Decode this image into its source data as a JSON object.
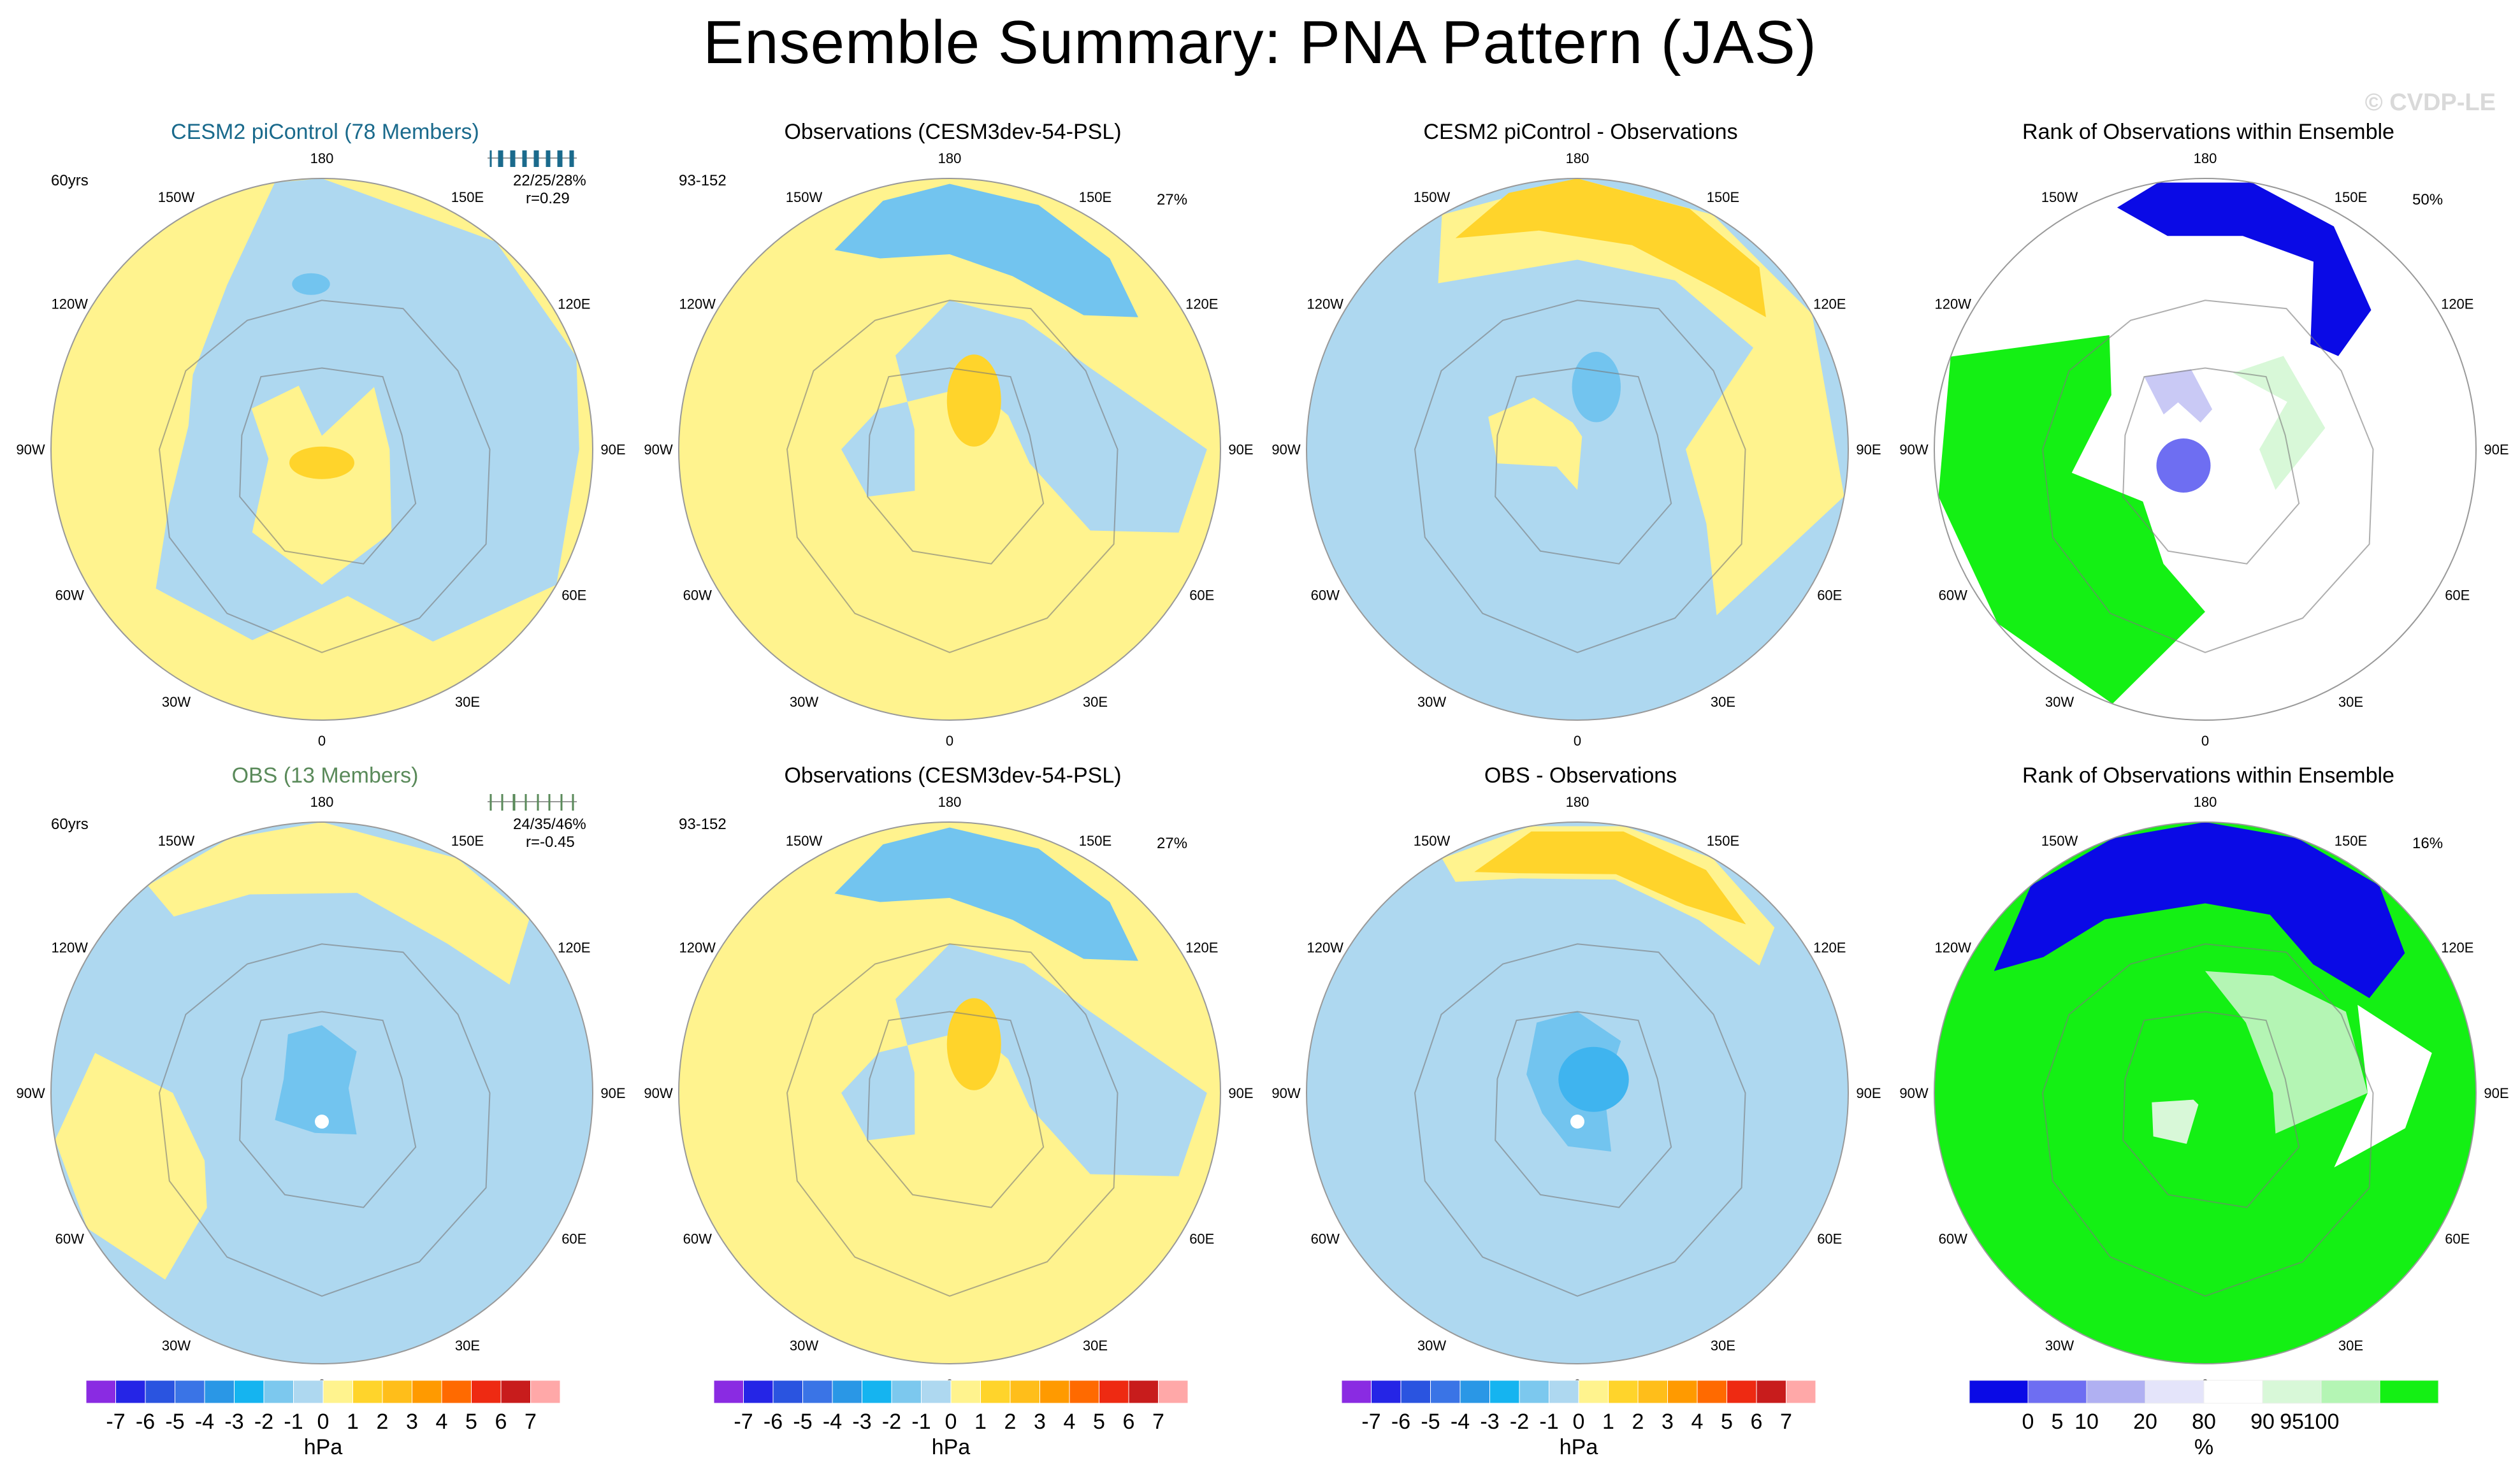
{
  "title": "Ensemble Summary: PNA Pattern (JAS)",
  "watermark": "© CVDP-LE",
  "palette": {
    "neg1": "#aed8f0",
    "neg2": "#72c4ef",
    "neg3": "#3fb4ef",
    "pos1": "#fff38e",
    "pos2": "#ffd42b",
    "rank_blue": "#0a0ae6",
    "rank_midblue": "#6e6ef2",
    "rank_lightblue": "#c9c9f5",
    "rank_paleblue": "#e4e4fa",
    "rank_white": "#ffffff",
    "rank_palegreen": "#d8f8d8",
    "rank_lightgreen": "#b4f5b4",
    "rank_green": "#14f014"
  },
  "longitude_labels": [
    "180",
    "150E",
    "120E",
    "90E",
    "60E",
    "30E",
    "0",
    "30W",
    "60W",
    "90W",
    "120W",
    "150W"
  ],
  "panels": [
    {
      "title": "CESM2 piControl (78 Members)",
      "title_color": "#1a6a8c",
      "left_text": "60yrs",
      "right_text": "",
      "stats": "22/25/28%",
      "corr": "r=0.29"
    },
    {
      "title": "Observations (CESM3dev-54-PSL)",
      "title_color": "#000000",
      "left_text": "93-152",
      "right_text": "27%",
      "stats": "",
      "corr": ""
    },
    {
      "title": "CESM2 piControl - Observations",
      "title_color": "#000000",
      "left_text": "",
      "right_text": "",
      "stats": "",
      "corr": ""
    },
    {
      "title": "Rank of Observations within Ensemble",
      "title_color": "#000000",
      "left_text": "",
      "right_text": "50%",
      "stats": "",
      "corr": ""
    },
    {
      "title": "OBS (13 Members)",
      "title_color": "#5a8a5a",
      "left_text": "60yrs",
      "right_text": "",
      "stats": "24/35/46%",
      "corr": "r=-0.45"
    },
    {
      "title": "Observations (CESM3dev-54-PSL)",
      "title_color": "#000000",
      "left_text": "93-152",
      "right_text": "27%",
      "stats": "",
      "corr": ""
    },
    {
      "title": "OBS - Observations",
      "title_color": "#000000",
      "left_text": "",
      "right_text": "",
      "stats": "",
      "corr": ""
    },
    {
      "title": "Rank of Observations within Ensemble",
      "title_color": "#000000",
      "left_text": "",
      "right_text": "16%",
      "stats": "",
      "corr": ""
    }
  ],
  "chart_data": {
    "type": "heatmap",
    "projection": "polar stereographic (Northern Hemisphere)",
    "hpa_colorbar": {
      "unit": "hPa",
      "levels": [
        -7,
        -6,
        -5,
        -4,
        -3,
        -2,
        -1,
        0,
        1,
        2,
        3,
        4,
        5,
        6,
        7
      ],
      "tick_labels": [
        "-7",
        "-6",
        "-5",
        "-4",
        "-3",
        "-2",
        "-1",
        "0",
        "1",
        "2",
        "3",
        "4",
        "5",
        "6",
        "7"
      ],
      "colors": [
        "#8a2be2",
        "#2525e6",
        "#2a54e0",
        "#3a74e6",
        "#2a97e6",
        "#15b4f0",
        "#7cc8ee",
        "#aed8f0",
        "#fff38e",
        "#ffd42b",
        "#ffbe1a",
        "#ff9a00",
        "#ff6a00",
        "#ee2a12",
        "#c81c1c",
        "#ffa8a8"
      ]
    },
    "rank_colorbar": {
      "unit": "%",
      "levels": [
        0,
        5,
        10,
        20,
        80,
        90,
        95,
        100
      ],
      "tick_labels": [
        "0",
        "5",
        "10",
        "20",
        "80",
        "90",
        "95",
        "100"
      ],
      "colors": [
        "#0a0ae6",
        "#6e6ef2",
        "#b0b0f2",
        "#e4e4fa",
        "#ffffff",
        "#d8f8d8",
        "#b4f5b4",
        "#14f014"
      ]
    },
    "panel_values": {
      "CESM2 piControl (78 Members)": {
        "stats_percent": [
          22,
          25,
          28
        ],
        "r": 0.29
      },
      "OBS (13 Members)": {
        "stats_percent": [
          24,
          35,
          46
        ],
        "r": -0.45
      },
      "Observations (CESM3dev-54-PSL)": {
        "pct_variance": 27
      },
      "Rank (row 1)": {
        "percent": 50
      },
      "Rank (row 2)": {
        "percent": 16
      }
    }
  }
}
